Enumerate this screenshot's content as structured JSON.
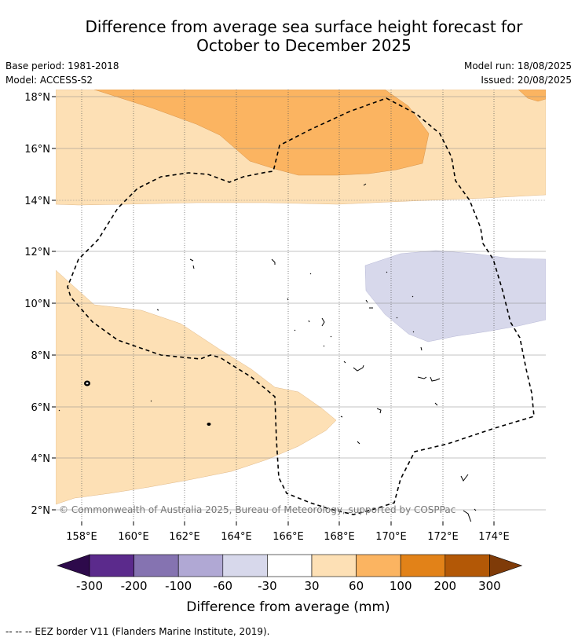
{
  "title_line1": "Difference from average sea surface height forecast for",
  "title_line2": "October to December 2025",
  "meta": {
    "base_period": "Base period: 1981-2018",
    "model": "Model: ACCESS-S2",
    "model_run": "Model run: 18/08/2025",
    "issued": "Issued: 20/08/2025"
  },
  "axes": {
    "lat_labels": [
      "18°N",
      "16°N",
      "14°N",
      "12°N",
      "10°N",
      "8°N",
      "6°N",
      "4°N",
      "2°N"
    ],
    "lon_labels": [
      "158°E",
      "160°E",
      "162°E",
      "164°E",
      "166°E",
      "168°E",
      "170°E",
      "172°E",
      "174°E"
    ]
  },
  "copyright": "© Commonwealth of Australia 2025, Bureau of Meteorology, supported by COSPPac",
  "colorbar": {
    "label": "Difference from average (mm)",
    "ticks": [
      "-300",
      "-200",
      "-100",
      "-60",
      "-30",
      "30",
      "60",
      "100",
      "200",
      "300"
    ],
    "colors": [
      "#2d0a4b",
      "#5b2a8c",
      "#8573b1",
      "#b0a8d4",
      "#d7d8eb",
      "#ffffff",
      "#fde0b5",
      "#fbb461",
      "#e28218",
      "#b35806",
      "#7f3b08"
    ]
  },
  "footnote": "-- -- -- EEZ border V11 (Flanders Marine Institute, 2019).",
  "legend": {
    "eez": "EEZ border"
  }
}
